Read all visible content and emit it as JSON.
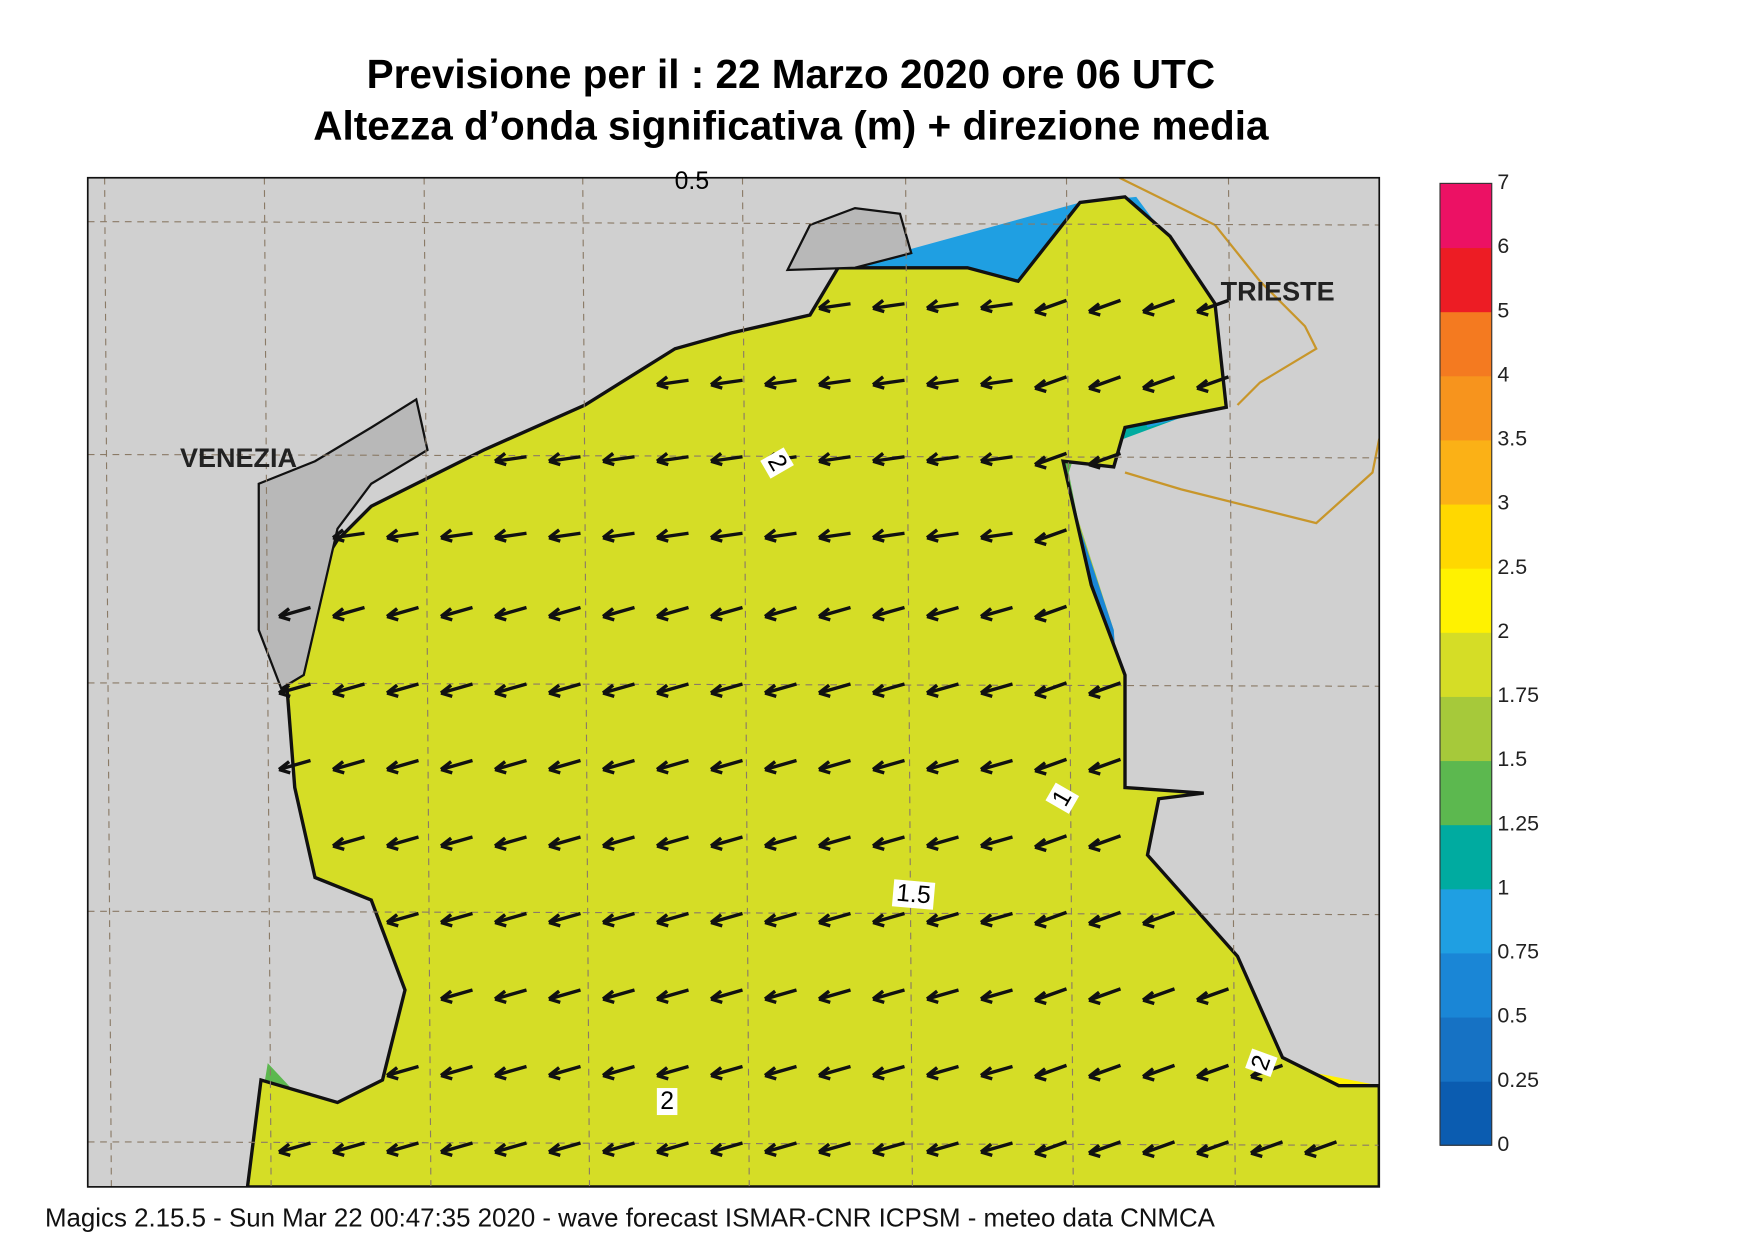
{
  "header": {
    "title": "Previsione per il  :  22   Marzo   2020   ore 06 UTC",
    "subtitle": "Altezza d’onda significativa (m) + direzione media"
  },
  "places": [
    "VENEZIA",
    "TRIESTE"
  ],
  "contour_labels": [
    2,
    1.5,
    1,
    2,
    2,
    0.5
  ],
  "colorbar": {
    "levels": [
      0,
      0.25,
      0.5,
      0.75,
      1,
      1.25,
      1.5,
      1.75,
      2,
      2.5,
      3,
      3.5,
      4,
      5,
      6,
      7
    ],
    "colors": [
      "#0b5cb0",
      "#1672c4",
      "#1a86d6",
      "#1f9fe2",
      "#00aba0",
      "#5cb84f",
      "#a6c93a",
      "#d5dd26",
      "#fff200",
      "#ffd800",
      "#fbb116",
      "#f7941d",
      "#f47a20",
      "#ed1c24",
      "#ec1164"
    ]
  },
  "footer": "Magics 2.15.5 - Sun Mar 22 00:47:35 2020 - wave forecast  ISMAR-CNR  ICPSM - meteo data   CNMCA"
}
